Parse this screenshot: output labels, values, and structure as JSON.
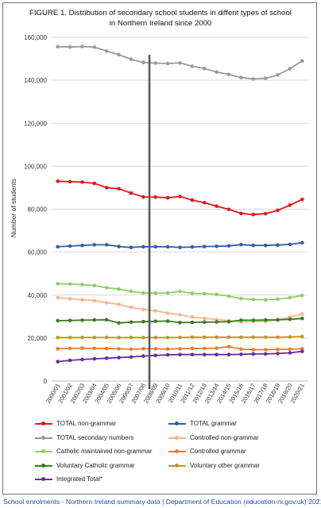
{
  "title_line1": "FIGURE 1. Distribution of secondary school students in diffent types of school",
  "title_line2": "in Northern Ireland since 2000",
  "source_text": "School enrolments - Northern Ireland summary data | Department of Education (education-ni.gov.uk) 2021",
  "chart_data": {
    "type": "line",
    "title": "FIGURE 1. Distribution of secondary school students in diffent types of school in Northern Ireland since 2000",
    "xlabel": "",
    "ylabel": "Number of students",
    "ylim": [
      0,
      160000
    ],
    "yticks": [
      0,
      20000,
      40000,
      60000,
      80000,
      100000,
      120000,
      140000,
      160000
    ],
    "ytick_labels": [
      "0",
      "20,000",
      "40,000",
      "60,000",
      "80,000",
      "100,000",
      "120,000",
      "140,000",
      "160,000"
    ],
    "categories": [
      "2000/01",
      "2001/02",
      "2002/03",
      "2003/04",
      "2004/05",
      "2005/06",
      "2006/07",
      "2007/08",
      "2008/09",
      "2009/10",
      "2010/11",
      "2011/12",
      "2012/13",
      "2013/14",
      "2014/15",
      "2015/16",
      "2016/17",
      "2017/18",
      "2018/19",
      "2019/20",
      "2020/21"
    ],
    "vertical_marker_at": "2007/08",
    "legend_position": "bottom",
    "grid": "horizontal",
    "series": [
      {
        "name": "TOTAL non-grammar",
        "color": "#e8151b",
        "values": [
          93000,
          92800,
          92600,
          92000,
          90000,
          89500,
          87500,
          85700,
          85600,
          85300,
          85900,
          84200,
          83000,
          81400,
          79900,
          78000,
          77500,
          77900,
          79500,
          81900,
          84500
        ]
      },
      {
        "name": "TOTAL grammar",
        "color": "#2f5fa8",
        "values": [
          62500,
          62800,
          63100,
          63400,
          63400,
          62600,
          62200,
          62500,
          62500,
          62500,
          62200,
          62400,
          62600,
          62700,
          62900,
          63500,
          63100,
          63100,
          63300,
          63600,
          64400
        ]
      },
      {
        "name": "TOTAL secondary numbers",
        "color": "#9a9a9a",
        "values": [
          155600,
          155500,
          155700,
          155400,
          153600,
          151900,
          149800,
          148300,
          148000,
          147800,
          148100,
          146500,
          145500,
          143800,
          142700,
          141300,
          140600,
          140900,
          142500,
          145400,
          149000
        ]
      },
      {
        "name": "Controlled non-grammar",
        "color": "#f7b48c",
        "values": [
          38800,
          38300,
          37800,
          37400,
          36400,
          35700,
          34300,
          33300,
          32700,
          31600,
          30800,
          29800,
          29200,
          28600,
          28100,
          27500,
          27700,
          27800,
          28400,
          29800,
          31200
        ]
      },
      {
        "name": "Catholic maintained non-grammar",
        "color": "#8fcc6a",
        "values": [
          45300,
          45100,
          44900,
          44400,
          43400,
          42800,
          41700,
          41000,
          40900,
          41000,
          41700,
          40800,
          40700,
          40300,
          39500,
          38400,
          37900,
          37800,
          38100,
          38800,
          39800
        ]
      },
      {
        "name": "Controlled grammar",
        "color": "#ee7a2a",
        "values": [
          15000,
          15200,
          15300,
          15200,
          15100,
          15000,
          14800,
          15000,
          15000,
          14900,
          15000,
          15200,
          15200,
          15300,
          16000,
          14800,
          14600,
          14600,
          14700,
          14800,
          15000
        ]
      },
      {
        "name": "Voluntary Catholic grammar",
        "color": "#3a7a1c",
        "values": [
          28100,
          28200,
          28300,
          28400,
          28500,
          27000,
          27400,
          27600,
          27800,
          27900,
          27200,
          27300,
          27400,
          27500,
          27600,
          28300,
          28300,
          28400,
          28500,
          28700,
          29100
        ]
      },
      {
        "name": "Voluntary other grammar",
        "color": "#c39a12",
        "values": [
          20200,
          20200,
          20300,
          20300,
          20300,
          20200,
          20300,
          20200,
          20200,
          20200,
          20300,
          20400,
          20400,
          20400,
          20400,
          20400,
          20400,
          20400,
          20400,
          20500,
          20700
        ]
      },
      {
        "name": "Integrated Total*",
        "color": "#6b2a9e",
        "values": [
          9000,
          9600,
          10000,
          10300,
          10600,
          10900,
          11200,
          11600,
          11900,
          12200,
          12300,
          12300,
          12300,
          12300,
          12300,
          12400,
          12600,
          12600,
          12800,
          13100,
          13800
        ]
      }
    ]
  }
}
